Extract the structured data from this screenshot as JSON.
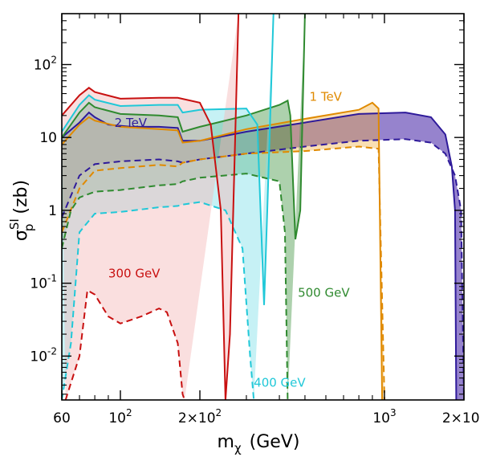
{
  "chart_data": {
    "type": "area",
    "title": "",
    "xlabel": {
      "main": "m",
      "sub": "χ",
      "unit": "(GeV)"
    },
    "ylabel": {
      "main": "σ",
      "sub": "p",
      "sup": "SI",
      "unit": "(zb)"
    },
    "x_scale": "log",
    "y_scale": "log",
    "xlim": [
      60,
      2000
    ],
    "ylim": [
      0.0025,
      500
    ],
    "grid": false,
    "x_ticks": [
      {
        "value": 60,
        "label": "60"
      },
      {
        "value": 100,
        "label": "10",
        "sup": "2"
      },
      {
        "value": 200,
        "label": "2×10",
        "sup": "2"
      },
      {
        "value": 1000,
        "label": "10",
        "sup": "3"
      },
      {
        "value": 2000,
        "label": "2×10",
        "sup": "3"
      }
    ],
    "y_ticks": [
      {
        "value": 0.01,
        "label": "10",
        "sup": "-2"
      },
      {
        "value": 0.1,
        "label": "10",
        "sup": "-1"
      },
      {
        "value": 1,
        "label": "1"
      },
      {
        "value": 10,
        "label": "10"
      },
      {
        "value": 100,
        "label": "10",
        "sup": "2"
      }
    ],
    "series": [
      {
        "name": "2 TeV",
        "color": "#2e1a9a",
        "fill": "#6a4fb8",
        "opacity": 0.7,
        "label_at": [
          95,
          14
        ],
        "upper": [
          [
            60,
            10
          ],
          [
            70,
            16
          ],
          [
            76,
            22
          ],
          [
            80,
            19
          ],
          [
            90,
            15
          ],
          [
            110,
            14
          ],
          [
            140,
            14
          ],
          [
            165,
            13.5
          ],
          [
            172,
            9
          ],
          [
            200,
            9
          ],
          [
            300,
            12
          ],
          [
            500,
            16
          ],
          [
            800,
            21
          ],
          [
            1200,
            22
          ],
          [
            1500,
            19
          ],
          [
            1700,
            11
          ],
          [
            1800,
            4
          ],
          [
            1850,
            1
          ],
          [
            1870,
            0.0025
          ]
        ],
        "lower": [
          [
            60,
            0.8
          ],
          [
            70,
            3
          ],
          [
            80,
            4.3
          ],
          [
            100,
            4.7
          ],
          [
            140,
            5
          ],
          [
            165,
            4.7
          ],
          [
            172,
            4.5
          ],
          [
            200,
            5
          ],
          [
            300,
            6
          ],
          [
            500,
            7.5
          ],
          [
            800,
            9
          ],
          [
            1200,
            9.5
          ],
          [
            1500,
            8.5
          ],
          [
            1700,
            6
          ],
          [
            1850,
            3
          ],
          [
            1950,
            1
          ],
          [
            2000,
            0.0025
          ]
        ]
      },
      {
        "name": "1 TeV",
        "color": "#e08a00",
        "fill": "#f0b040",
        "opacity": 0.4,
        "label_at": [
          520,
          32
        ],
        "upper": [
          [
            60,
            8
          ],
          [
            70,
            15
          ],
          [
            76,
            19
          ],
          [
            80,
            17
          ],
          [
            100,
            14
          ],
          [
            140,
            13
          ],
          [
            165,
            12.5
          ],
          [
            172,
            8.5
          ],
          [
            200,
            9
          ],
          [
            300,
            13
          ],
          [
            500,
            18
          ],
          [
            800,
            24
          ],
          [
            900,
            30
          ],
          [
            950,
            25
          ],
          [
            980,
            0.0025
          ]
        ],
        "lower": [
          [
            60,
            0.5
          ],
          [
            70,
            2
          ],
          [
            80,
            3.5
          ],
          [
            100,
            3.8
          ],
          [
            140,
            4.2
          ],
          [
            165,
            4
          ],
          [
            172,
            4.5
          ],
          [
            200,
            5
          ],
          [
            300,
            6
          ],
          [
            500,
            6.5
          ],
          [
            800,
            7.5
          ],
          [
            950,
            7
          ],
          [
            1000,
            0.0025
          ]
        ]
      },
      {
        "name": "500 GeV",
        "color": "#2f8a2f",
        "fill": "#4a9a4a",
        "opacity": 0.45,
        "label_at": [
          470,
          0.065
        ],
        "upper": [
          [
            60,
            10
          ],
          [
            70,
            22
          ],
          [
            76,
            30
          ],
          [
            80,
            26
          ],
          [
            100,
            21
          ],
          [
            140,
            20
          ],
          [
            165,
            19
          ],
          [
            172,
            12
          ],
          [
            200,
            14
          ],
          [
            300,
            20
          ],
          [
            400,
            28
          ],
          [
            430,
            32
          ],
          [
            440,
            20
          ],
          [
            460,
            0.4
          ],
          [
            480,
            1
          ],
          [
            500,
            500
          ]
        ],
        "lower": [
          [
            60,
            0.3
          ],
          [
            65,
            1
          ],
          [
            70,
            1.5
          ],
          [
            80,
            1.8
          ],
          [
            100,
            1.9
          ],
          [
            140,
            2.2
          ],
          [
            165,
            2.3
          ],
          [
            172,
            2.5
          ],
          [
            200,
            2.8
          ],
          [
            300,
            3.2
          ],
          [
            400,
            2.5
          ],
          [
            420,
            0.5
          ],
          [
            430,
            0.0025
          ]
        ]
      },
      {
        "name": "400 GeV",
        "color": "#20c8d8",
        "fill": "#80e0e8",
        "opacity": 0.45,
        "label_at": [
          320,
          0.0038
        ],
        "upper": [
          [
            60,
            12
          ],
          [
            70,
            28
          ],
          [
            76,
            38
          ],
          [
            80,
            33
          ],
          [
            100,
            27
          ],
          [
            140,
            28
          ],
          [
            165,
            28
          ],
          [
            172,
            22
          ],
          [
            200,
            24
          ],
          [
            300,
            25
          ],
          [
            330,
            15
          ],
          [
            350,
            0.05
          ],
          [
            360,
            1
          ],
          [
            380,
            500
          ]
        ],
        "lower": [
          [
            60,
            0.0025
          ],
          [
            65,
            0.015
          ],
          [
            70,
            0.5
          ],
          [
            80,
            0.9
          ],
          [
            100,
            0.95
          ],
          [
            140,
            1.1
          ],
          [
            165,
            1.15
          ],
          [
            172,
            1.2
          ],
          [
            200,
            1.3
          ],
          [
            250,
            1
          ],
          [
            290,
            0.3
          ],
          [
            310,
            0.01
          ],
          [
            320,
            0.0025
          ]
        ]
      },
      {
        "name": "300 GeV",
        "color": "#c81010",
        "fill": "#f4b8b8",
        "opacity": 0.45,
        "label_at": [
          90,
          0.12
        ],
        "upper": [
          [
            60,
            20
          ],
          [
            70,
            38
          ],
          [
            76,
            48
          ],
          [
            80,
            42
          ],
          [
            100,
            34
          ],
          [
            140,
            35
          ],
          [
            165,
            35
          ],
          [
            200,
            30
          ],
          [
            220,
            15
          ],
          [
            240,
            1
          ],
          [
            250,
            0.0025
          ],
          [
            260,
            0.02
          ],
          [
            280,
            500
          ]
        ],
        "lower": [
          [
            62,
            0.0025
          ],
          [
            70,
            0.01
          ],
          [
            75,
            0.08
          ],
          [
            80,
            0.07
          ],
          [
            90,
            0.035
          ],
          [
            100,
            0.028
          ],
          [
            120,
            0.035
          ],
          [
            140,
            0.045
          ],
          [
            150,
            0.04
          ],
          [
            165,
            0.015
          ],
          [
            172,
            0.003
          ],
          [
            175,
            0.0025
          ]
        ]
      }
    ]
  }
}
